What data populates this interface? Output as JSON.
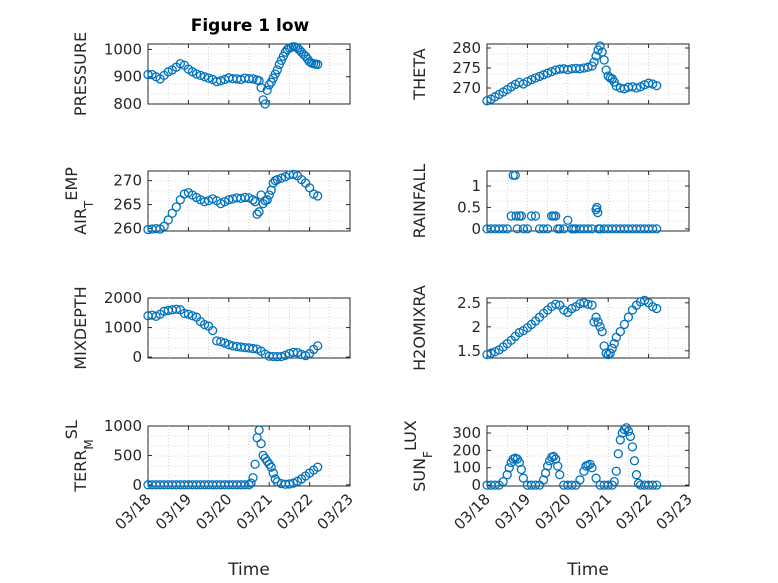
{
  "figure": {
    "title": "Figure 1 low"
  },
  "chart_data": [
    {
      "type": "scatter",
      "id": "pressure",
      "ylabel": "PRESSURE",
      "xlim": [
        0,
        5
      ],
      "ylim": [
        800,
        1020
      ],
      "yticks": [
        800,
        900,
        1000
      ],
      "xticks": [],
      "xtick_labels": [],
      "xlabel": "",
      "grid": true,
      "series": [
        {
          "x": [
            0.0,
            0.1,
            0.2,
            0.3,
            0.4,
            0.5,
            0.6,
            0.7,
            0.8,
            0.9,
            1.0,
            1.1,
            1.2,
            1.3,
            1.4,
            1.5,
            1.6,
            1.7,
            1.8,
            1.9,
            2.0,
            2.1,
            2.2,
            2.3,
            2.4,
            2.5,
            2.6,
            2.7,
            2.75,
            2.8,
            2.85,
            2.9,
            2.95,
            3.0,
            3.05,
            3.1,
            3.15,
            3.2,
            3.25,
            3.3,
            3.35,
            3.4,
            3.45,
            3.5,
            3.55,
            3.6,
            3.65,
            3.7,
            3.75,
            3.8,
            3.85,
            3.9,
            3.95,
            4.0,
            4.05,
            4.1,
            4.15,
            4.2
          ],
          "y": [
            908,
            908,
            900,
            892,
            905,
            918,
            925,
            935,
            948,
            942,
            928,
            918,
            910,
            905,
            900,
            895,
            890,
            882,
            885,
            890,
            896,
            893,
            892,
            890,
            895,
            893,
            892,
            888,
            885,
            860,
            815,
            800,
            850,
            870,
            880,
            895,
            910,
            925,
            945,
            960,
            975,
            990,
            1000,
            1005,
            1008,
            1010,
            1009,
            1005,
            998,
            990,
            982,
            975,
            965,
            955,
            950,
            948,
            946,
            945
          ]
        }
      ]
    },
    {
      "type": "scatter",
      "id": "theta",
      "ylabel": "THETA",
      "xlim": [
        0,
        5
      ],
      "ylim": [
        266,
        281
      ],
      "yticks": [
        270,
        275,
        280
      ],
      "xticks": [],
      "xtick_labels": [],
      "xlabel": "",
      "grid": true,
      "series": [
        {
          "x": [
            0.0,
            0.1,
            0.2,
            0.3,
            0.4,
            0.5,
            0.6,
            0.7,
            0.8,
            0.9,
            1.0,
            1.1,
            1.2,
            1.3,
            1.4,
            1.5,
            1.6,
            1.7,
            1.8,
            1.9,
            2.0,
            2.1,
            2.2,
            2.3,
            2.4,
            2.5,
            2.6,
            2.65,
            2.7,
            2.75,
            2.8,
            2.85,
            2.9,
            2.95,
            3.0,
            3.05,
            3.1,
            3.15,
            3.2,
            3.3,
            3.4,
            3.5,
            3.6,
            3.7,
            3.8,
            3.9,
            4.0,
            4.1,
            4.2
          ],
          "y": [
            266.8,
            267.2,
            267.8,
            268.4,
            269.0,
            269.6,
            270.3,
            270.9,
            271.4,
            271.0,
            271.6,
            272.1,
            272.5,
            272.9,
            273.3,
            273.7,
            274.1,
            274.5,
            274.7,
            274.8,
            274.6,
            274.8,
            274.9,
            274.8,
            275.0,
            275.2,
            275.5,
            276.5,
            278.0,
            279.5,
            280.5,
            279.0,
            277.0,
            274.5,
            273.0,
            272.5,
            272.3,
            271.5,
            270.5,
            270.0,
            269.8,
            270.2,
            270.3,
            270.0,
            270.3,
            270.8,
            271.2,
            271.0,
            270.6
          ]
        }
      ]
    },
    {
      "type": "scatter",
      "id": "air_temp",
      "ylabel": "AIR_TEMP",
      "xlim": [
        0,
        5
      ],
      "ylim": [
        259.5,
        272
      ],
      "yticks": [
        260,
        265,
        270
      ],
      "xticks": [],
      "xtick_labels": [],
      "xlabel": "",
      "grid": true,
      "series": [
        {
          "x": [
            0.0,
            0.1,
            0.2,
            0.3,
            0.4,
            0.5,
            0.6,
            0.7,
            0.8,
            0.9,
            1.0,
            1.1,
            1.2,
            1.3,
            1.4,
            1.5,
            1.6,
            1.7,
            1.8,
            1.9,
            2.0,
            2.1,
            2.2,
            2.3,
            2.4,
            2.5,
            2.6,
            2.65,
            2.7,
            2.75,
            2.8,
            2.85,
            2.9,
            2.95,
            3.0,
            3.05,
            3.1,
            3.15,
            3.2,
            3.3,
            3.4,
            3.5,
            3.6,
            3.7,
            3.8,
            3.9,
            4.0,
            4.1,
            4.2
          ],
          "y": [
            259.8,
            259.9,
            260.0,
            259.9,
            260.5,
            261.8,
            263.2,
            264.5,
            266.0,
            267.2,
            267.5,
            267.0,
            266.5,
            266.0,
            265.6,
            265.8,
            266.2,
            265.8,
            265.2,
            265.6,
            266.0,
            266.2,
            266.4,
            266.3,
            266.5,
            266.4,
            266.0,
            265.6,
            263.0,
            263.5,
            267.0,
            265.2,
            265.8,
            266.0,
            267.0,
            268.0,
            269.5,
            270.0,
            270.2,
            270.5,
            270.8,
            271.2,
            271.3,
            271.0,
            270.2,
            269.5,
            268.5,
            267.2,
            266.8
          ]
        }
      ]
    },
    {
      "type": "scatter",
      "id": "rainfall",
      "ylabel": "RAINFALL",
      "xlim": [
        0,
        5
      ],
      "ylim": [
        -0.05,
        1.35
      ],
      "yticks": [
        0,
        0.5,
        1
      ],
      "xticks": [],
      "xtick_labels": [],
      "xlabel": "",
      "grid": true,
      "series": [
        {
          "x": [
            0.0,
            0.1,
            0.2,
            0.3,
            0.4,
            0.5,
            0.6,
            0.65,
            0.7,
            0.72,
            0.75,
            0.8,
            0.85,
            0.9,
            1.0,
            1.1,
            1.2,
            1.3,
            1.4,
            1.5,
            1.6,
            1.65,
            1.7,
            1.75,
            1.8,
            1.9,
            2.0,
            2.1,
            2.15,
            2.2,
            2.3,
            2.4,
            2.5,
            2.6,
            2.7,
            2.72,
            2.74,
            2.76,
            2.8,
            2.9,
            3.0,
            3.1,
            3.2,
            3.3,
            3.4,
            3.5,
            3.6,
            3.7,
            3.8,
            3.9,
            4.0,
            4.1,
            4.2
          ],
          "y": [
            0,
            0,
            0,
            0,
            0,
            0,
            0.3,
            1.25,
            1.25,
            0.3,
            0,
            0.3,
            0.3,
            0,
            0,
            0.3,
            0.3,
            0,
            0,
            0,
            0.3,
            0.3,
            0.3,
            0,
            0,
            0,
            0.2,
            0,
            0,
            0,
            0,
            0,
            0,
            0,
            0.45,
            0.5,
            0.38,
            0,
            0,
            0,
            0,
            0,
            0,
            0,
            0,
            0,
            0,
            0,
            0,
            0,
            0,
            0,
            0
          ]
        }
      ]
    },
    {
      "type": "scatter",
      "id": "mixdepth",
      "ylabel": "MIXDEPTH",
      "xlim": [
        0,
        5
      ],
      "ylim": [
        -30,
        2000
      ],
      "yticks": [
        0,
        1000,
        2000
      ],
      "xticks": [],
      "xtick_labels": [],
      "xlabel": "",
      "grid": true,
      "series": [
        {
          "x": [
            0.0,
            0.1,
            0.2,
            0.3,
            0.4,
            0.5,
            0.6,
            0.7,
            0.8,
            0.9,
            1.0,
            1.1,
            1.2,
            1.3,
            1.4,
            1.5,
            1.6,
            1.7,
            1.8,
            1.9,
            2.0,
            2.1,
            2.2,
            2.3,
            2.4,
            2.5,
            2.6,
            2.7,
            2.8,
            2.9,
            3.0,
            3.1,
            3.2,
            3.3,
            3.4,
            3.5,
            3.6,
            3.7,
            3.8,
            3.9,
            4.0,
            4.1,
            4.2
          ],
          "y": [
            1400,
            1420,
            1380,
            1450,
            1550,
            1580,
            1600,
            1620,
            1600,
            1480,
            1450,
            1400,
            1350,
            1200,
            1100,
            1050,
            900,
            550,
            520,
            480,
            420,
            380,
            360,
            340,
            320,
            310,
            290,
            270,
            200,
            100,
            30,
            20,
            15,
            20,
            60,
            120,
            160,
            150,
            90,
            50,
            120,
            260,
            380
          ]
        }
      ]
    },
    {
      "type": "scatter",
      "id": "h2omixra",
      "ylabel": "H2OMIXRA",
      "xlim": [
        0,
        5
      ],
      "ylim": [
        1.35,
        2.6
      ],
      "yticks": [
        1.5,
        2,
        2.5
      ],
      "xticks": [],
      "xtick_labels": [],
      "xlabel": "",
      "grid": true,
      "series": [
        {
          "x": [
            0.0,
            0.1,
            0.2,
            0.3,
            0.4,
            0.5,
            0.6,
            0.7,
            0.8,
            0.9,
            1.0,
            1.1,
            1.2,
            1.3,
            1.4,
            1.5,
            1.6,
            1.7,
            1.8,
            1.9,
            2.0,
            2.1,
            2.2,
            2.3,
            2.4,
            2.5,
            2.6,
            2.65,
            2.7,
            2.75,
            2.8,
            2.85,
            2.9,
            2.95,
            3.0,
            3.05,
            3.1,
            3.15,
            3.2,
            3.3,
            3.4,
            3.5,
            3.6,
            3.7,
            3.8,
            3.9,
            4.0,
            4.1,
            4.2
          ],
          "y": [
            1.42,
            1.45,
            1.48,
            1.52,
            1.58,
            1.65,
            1.72,
            1.8,
            1.88,
            1.92,
            1.98,
            2.05,
            2.12,
            2.2,
            2.28,
            2.35,
            2.42,
            2.47,
            2.45,
            2.35,
            2.3,
            2.38,
            2.42,
            2.48,
            2.5,
            2.47,
            2.45,
            2.1,
            2.2,
            2.1,
            2.0,
            1.9,
            1.6,
            1.45,
            1.42,
            1.45,
            1.55,
            1.65,
            1.78,
            1.9,
            2.05,
            2.2,
            2.35,
            2.45,
            2.52,
            2.55,
            2.5,
            2.42,
            2.38
          ]
        }
      ]
    },
    {
      "type": "scatter",
      "id": "terr_msl",
      "ylabel": "TERR_MSL",
      "xlim": [
        0,
        5
      ],
      "ylim": [
        -20,
        1000
      ],
      "yticks": [
        0,
        500,
        1000
      ],
      "xticks": [
        0,
        1,
        2,
        3,
        4,
        5
      ],
      "xtick_labels": [
        "03/18",
        "03/19",
        "03/20",
        "03/21",
        "03/22",
        "03/23"
      ],
      "xlabel": "Time",
      "grid": true,
      "series": [
        {
          "x": [
            0.0,
            0.1,
            0.2,
            0.3,
            0.4,
            0.5,
            0.6,
            0.7,
            0.8,
            0.9,
            1.0,
            1.1,
            1.2,
            1.3,
            1.4,
            1.5,
            1.6,
            1.7,
            1.8,
            1.9,
            2.0,
            2.1,
            2.2,
            2.3,
            2.4,
            2.5,
            2.55,
            2.6,
            2.65,
            2.7,
            2.75,
            2.8,
            2.85,
            2.9,
            2.95,
            3.0,
            3.05,
            3.1,
            3.15,
            3.2,
            3.3,
            3.4,
            3.5,
            3.6,
            3.7,
            3.8,
            3.9,
            4.0,
            4.1,
            4.2
          ],
          "y": [
            0,
            0,
            0,
            0,
            0,
            0,
            0,
            0,
            0,
            0,
            0,
            0,
            0,
            0,
            0,
            0,
            0,
            0,
            0,
            0,
            0,
            0,
            0,
            0,
            0,
            0,
            30,
            120,
            350,
            800,
            930,
            700,
            500,
            450,
            400,
            350,
            300,
            200,
            100,
            50,
            20,
            10,
            15,
            30,
            60,
            100,
            150,
            200,
            250,
            300
          ]
        }
      ]
    },
    {
      "type": "scatter",
      "id": "sun_flux",
      "ylabel": "SUN_FLUX",
      "xlim": [
        0,
        5
      ],
      "ylim": [
        -5,
        340
      ],
      "yticks": [
        0,
        100,
        200,
        300
      ],
      "xticks": [
        0,
        1,
        2,
        3,
        4,
        5
      ],
      "xtick_labels": [
        "03/18",
        "03/19",
        "03/20",
        "03/21",
        "03/22",
        "03/23"
      ],
      "xlabel": "Time",
      "grid": true,
      "series": [
        {
          "x": [
            0.0,
            0.1,
            0.2,
            0.3,
            0.4,
            0.5,
            0.55,
            0.6,
            0.65,
            0.7,
            0.75,
            0.8,
            0.85,
            0.9,
            1.0,
            1.1,
            1.2,
            1.3,
            1.4,
            1.45,
            1.5,
            1.55,
            1.6,
            1.65,
            1.7,
            1.75,
            1.8,
            1.9,
            2.0,
            2.1,
            2.2,
            2.3,
            2.4,
            2.45,
            2.5,
            2.55,
            2.6,
            2.7,
            2.8,
            2.9,
            3.0,
            3.1,
            3.15,
            3.2,
            3.25,
            3.3,
            3.35,
            3.4,
            3.45,
            3.5,
            3.55,
            3.6,
            3.65,
            3.7,
            3.75,
            3.8,
            3.9,
            4.0,
            4.1,
            4.2
          ],
          "y": [
            0,
            0,
            0,
            0,
            20,
            60,
            100,
            130,
            150,
            155,
            150,
            130,
            90,
            40,
            0,
            0,
            0,
            0,
            30,
            70,
            110,
            140,
            160,
            165,
            150,
            110,
            60,
            0,
            0,
            0,
            0,
            30,
            80,
            110,
            115,
            120,
            100,
            40,
            0,
            0,
            0,
            0,
            20,
            80,
            180,
            260,
            300,
            320,
            330,
            310,
            280,
            220,
            140,
            60,
            10,
            0,
            0,
            0,
            0,
            0
          ]
        }
      ]
    }
  ]
}
